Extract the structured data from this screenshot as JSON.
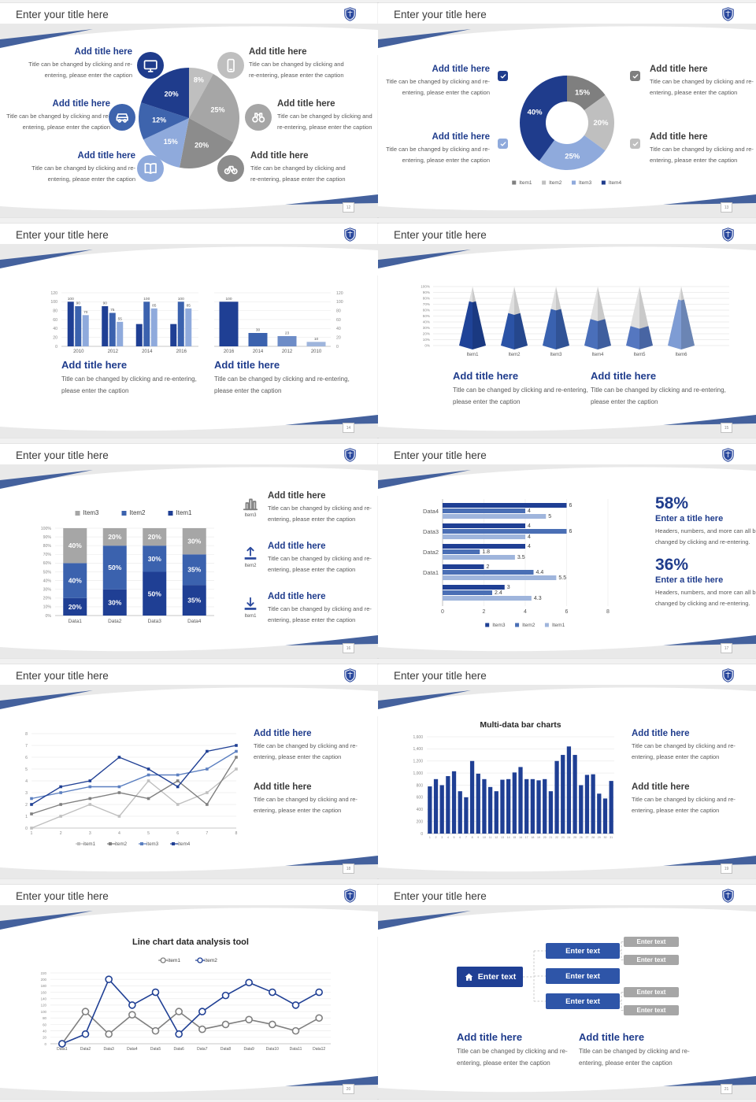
{
  "texts": {
    "slide_title": "Enter your title here",
    "add_title": "Add title here",
    "caption": "Title can be changed by clicking and re-entering, please enter the caption",
    "stat_title": "Enter a title here",
    "stat_caption": "Headers, numbers, and more can all be changed by clicking and re-entering.",
    "enter_text": "Enter text"
  },
  "colors": {
    "accent_swoosh": "#44619d",
    "navy": "#1f3f94",
    "title_blue": "#1f3c8c",
    "title_dark": "#3b3b3b",
    "caption_gray": "#595959"
  },
  "slides": [
    {
      "page": "12",
      "left_icons": [
        {
          "name": "monitor-icon",
          "bg": "#1f3c8c"
        },
        {
          "name": "car-icon",
          "bg": "#3e64ad"
        },
        {
          "name": "book-icon",
          "bg": "#8faadc"
        }
      ],
      "right_icons": [
        {
          "name": "smartphone-icon",
          "bg": "#bfbfbf"
        },
        {
          "name": "binoculars-icon",
          "bg": "#a6a6a6"
        },
        {
          "name": "bicycle-icon",
          "bg": "#8c8c8c"
        }
      ]
    },
    {
      "page": "13",
      "checkbox_colors_left": [
        "#1f3c8c",
        "#8faadc"
      ],
      "checkbox_colors_right": [
        "#7f7f7f",
        "#bfbfbf"
      ]
    },
    {
      "page": "14"
    },
    {
      "page": "15"
    },
    {
      "page": "16",
      "side_items": [
        {
          "icon": "bar-chart-icon",
          "icon_color": "#7f7f7f",
          "label": "Item3",
          "title_style": "dark"
        },
        {
          "icon": "upload-icon",
          "icon_color": "#2b4a9e",
          "label": "Item2",
          "title_style": "blue"
        },
        {
          "icon": "download-icon",
          "icon_color": "#2b4a9e",
          "label": "Item1",
          "title_style": "blue"
        }
      ]
    },
    {
      "page": "17",
      "stats": [
        {
          "value": "58%"
        },
        {
          "value": "36%"
        }
      ]
    },
    {
      "page": "18",
      "callout_styles": [
        "blue",
        "dark"
      ]
    },
    {
      "page": "19",
      "callout_styles": [
        "blue",
        "dark"
      ]
    },
    {
      "page": "20"
    },
    {
      "page": "21"
    }
  ],
  "chart_data": [
    {
      "type": "pie",
      "note": "clockwise from 12 o'clock",
      "values": [
        8,
        25,
        20,
        15,
        12,
        20
      ],
      "labels": [
        "8%",
        "25%",
        "20%",
        "15%",
        "12%",
        "20%"
      ],
      "colors": [
        "#bfbfbf",
        "#a6a6a6",
        "#8c8c8c",
        "#8faadc",
        "#3e64ad",
        "#1f3c8c"
      ]
    },
    {
      "type": "donut",
      "note": "clockwise from 12 o'clock",
      "values": [
        15,
        20,
        25,
        40
      ],
      "labels": [
        "15%",
        "20%",
        "25%",
        "40%"
      ],
      "colors": [
        "#7f7f7f",
        "#bfbfbf",
        "#8faadc",
        "#1f3c8c"
      ],
      "legend": [
        "Item1",
        "Item2",
        "Item3",
        "Item4"
      ],
      "legend_colors": [
        "#7f7f7f",
        "#bfbfbf",
        "#8faadc",
        "#1f3c8c"
      ]
    },
    {
      "type": "bar-pair",
      "left": {
        "categories": [
          "2010",
          "2012",
          "2014",
          "2016"
        ],
        "ymax": 120,
        "ytick_step": 20,
        "series": [
          {
            "color": "#1f3f94",
            "values": [
              100,
              90,
              50,
              50
            ],
            "labels": [
              100,
              90,
              null,
              null
            ]
          },
          {
            "color": "#3b62ae",
            "values": [
              90,
              75,
              100,
              100
            ],
            "labels": [
              90,
              75,
              100,
              100
            ]
          },
          {
            "color": "#8faadc",
            "values": [
              70,
              55,
              85,
              85
            ],
            "labels": [
              70,
              55,
              85,
              85
            ]
          }
        ]
      },
      "right": {
        "categories": [
          "2016",
          "2014",
          "2012",
          "2010"
        ],
        "ymax": 120,
        "ytick_step": 20,
        "axis": "right",
        "values": [
          100,
          30,
          23,
          10
        ],
        "labels": [
          100,
          30,
          23,
          10
        ],
        "colors": [
          "#1f3f94",
          "#3b62ae",
          "#6d8cc7",
          "#9fb5dc"
        ]
      }
    },
    {
      "type": "pyramid",
      "categories": [
        "Item1",
        "Item2",
        "Item3",
        "Item4",
        "Item5",
        "Item6"
      ],
      "values_pct": [
        75,
        55,
        62,
        45,
        33,
        78
      ],
      "colors": [
        "#1f4398",
        "#2b53a6",
        "#3a62b0",
        "#4a6fba",
        "#5577c0",
        "#7e9cd4"
      ],
      "cap_color": "#dfdfdf",
      "ymax_pct": 100,
      "ytick_step_pct": 10
    },
    {
      "type": "bar-stacked",
      "categories": [
        "Data1",
        "Data2",
        "Data3",
        "Data4"
      ],
      "series": [
        {
          "name": "Item1",
          "color": "#1f3f94",
          "values": [
            20,
            30,
            50,
            35
          ]
        },
        {
          "name": "Item2",
          "color": "#3b62ae",
          "values": [
            40,
            50,
            30,
            35
          ]
        },
        {
          "name": "Item3",
          "color": "#a6a6a6",
          "values": [
            40,
            20,
            20,
            30
          ]
        }
      ],
      "legend_order": [
        "Item3",
        "Item2",
        "Item1"
      ],
      "ymax": 100,
      "ytick_step": 10
    },
    {
      "type": "bar-horizontal",
      "group_labels": [
        "Data4",
        "Data3",
        "Data2",
        "Data1",
        ""
      ],
      "series_names": [
        "Item3",
        "Item2",
        "Item1"
      ],
      "series_colors": [
        "#1f3f94",
        "#4a6fb5",
        "#9fb5dc"
      ],
      "groups": [
        [
          6,
          4,
          5
        ],
        [
          4,
          6,
          4
        ],
        [
          4,
          1.8,
          3.5
        ],
        [
          2,
          4.4,
          5.5
        ],
        [
          3,
          2.4,
          4.3
        ]
      ],
      "xmax": 8,
      "xtick_step": 2
    },
    {
      "type": "line",
      "x": [
        1,
        2,
        3,
        4,
        5,
        6,
        7,
        8
      ],
      "ymax": 8,
      "ytick_step": 1,
      "series": [
        {
          "name": "item1",
          "color": "#bfbfbf",
          "values": [
            0,
            1,
            2,
            1,
            4,
            2,
            3,
            5
          ]
        },
        {
          "name": "item2",
          "color": "#7f7f7f",
          "values": [
            1.2,
            2,
            2.5,
            3,
            2.5,
            4,
            2,
            6
          ]
        },
        {
          "name": "item3",
          "color": "#5b7fc0",
          "values": [
            2.5,
            3,
            3.5,
            3.5,
            4.5,
            4.5,
            5,
            6.5
          ]
        },
        {
          "name": "item4",
          "color": "#1f3f94",
          "values": [
            2,
            3.5,
            4,
            6,
            5,
            3.5,
            6.5,
            7
          ]
        }
      ]
    },
    {
      "type": "bar-dense",
      "title": "Multi-data bar charts",
      "color": "#1f3f94",
      "categories": [
        "1",
        "2",
        "3",
        "4",
        "5",
        "6",
        "7",
        "8",
        "9",
        "10",
        "11",
        "12",
        "13",
        "14",
        "15",
        "16",
        "17",
        "18",
        "19",
        "20",
        "21",
        "22",
        "23",
        "24",
        "25",
        "26",
        "27",
        "28",
        "29",
        "30",
        "31"
      ],
      "ymax": 1600,
      "ytick_step": 200,
      "values": [
        780,
        900,
        800,
        950,
        1030,
        700,
        600,
        1200,
        990,
        900,
        770,
        700,
        890,
        900,
        1010,
        1100,
        900,
        900,
        880,
        900,
        700,
        1200,
        1300,
        1440,
        1300,
        800,
        970,
        980,
        660,
        580,
        870
      ]
    },
    {
      "type": "line-markers",
      "title": "Line chart data analysis tool",
      "categories": [
        "Data1",
        "Data2",
        "Data3",
        "Data4",
        "Data5",
        "Data6",
        "Data7",
        "Data8",
        "Data9",
        "Data10",
        "Data11",
        "Data12"
      ],
      "ymax": 220,
      "ytick_step": 20,
      "series": [
        {
          "name": "item1",
          "color": "#7f7f7f",
          "values": [
            0,
            100,
            30,
            90,
            40,
            100,
            45,
            60,
            75,
            60,
            40,
            80
          ]
        },
        {
          "name": "item2",
          "color": "#1f3f94",
          "values": [
            0,
            30,
            200,
            120,
            160,
            30,
            100,
            150,
            190,
            160,
            120,
            160
          ]
        }
      ]
    },
    {
      "type": "tree",
      "root": {
        "label": "Enter text",
        "icon": "home-icon"
      },
      "mid": [
        "Enter text",
        "Enter text",
        "Enter text"
      ],
      "leaves": [
        "Enter text",
        "Enter text",
        "Enter text",
        "Enter text"
      ]
    }
  ]
}
